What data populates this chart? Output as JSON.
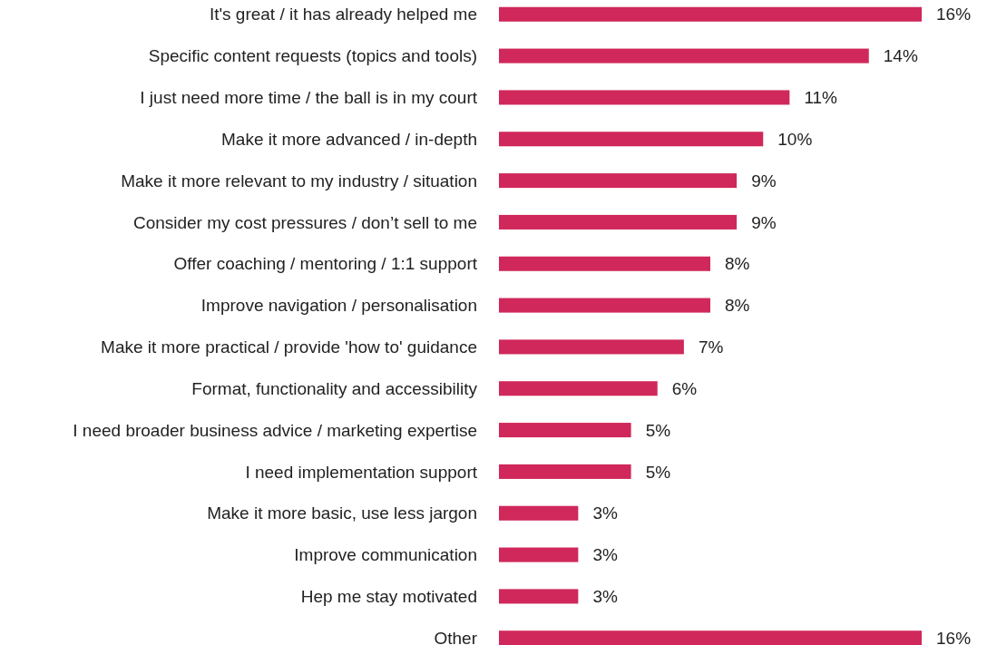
{
  "chart_data": {
    "type": "bar",
    "orientation": "horizontal",
    "categories": [
      "It's great / it has already helped me",
      "Specific content requests (topics and tools)",
      "I just need more time / the ball is in my court",
      "Make it more advanced / in-depth",
      "Make it more relevant to my industry / situation",
      "Consider my cost pressures / don’t sell to me",
      "Offer coaching / mentoring / 1:1 support",
      "Improve navigation / personalisation",
      "Make it more practical / provide 'how to' guidance",
      "Format, functionality and accessibility",
      "I need broader business advice / marketing expertise",
      "I need implementation support",
      "Make it more basic, use less jargon",
      "Improve communication",
      "Hep me stay motivated",
      "Other"
    ],
    "series": [
      {
        "color": "#d0285a",
        "values": [
          16,
          14,
          11,
          10,
          9,
          9,
          8,
          8,
          7,
          6,
          5,
          5,
          3,
          3,
          3,
          16
        ],
        "value_labels": [
          "16%",
          "14%",
          "11%",
          "10%",
          "9%",
          "9%",
          "8%",
          "8%",
          "7%",
          "6%",
          "5%",
          "5%",
          "3%",
          "3%",
          "3%",
          "16%"
        ]
      }
    ]
  }
}
